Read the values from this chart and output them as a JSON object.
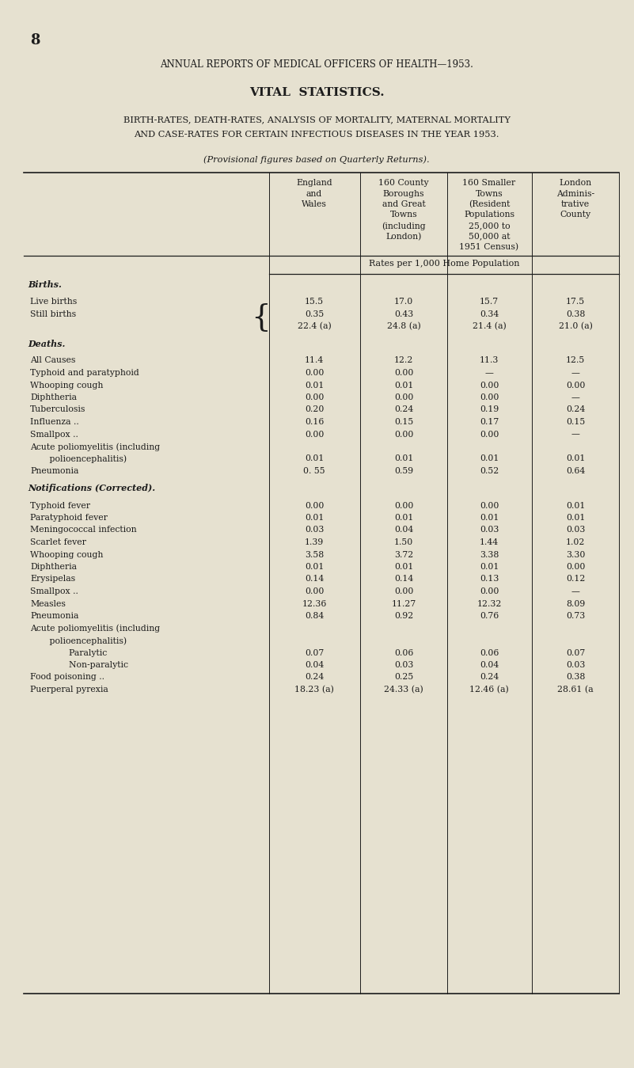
{
  "page_number": "8",
  "title1": "ANNUAL REPORTS OF MEDICAL OFFICERS OF HEALTH—1953.",
  "title2": "VITAL  STATISTICS.",
  "title3": "BIRTH-RATES, DEATH-RATES, ANALYSIS OF MORTALITY, MATERNAL MORTALITY",
  "title4": "AND CASE-RATES FOR CERTAIN INFECTIOUS DISEASES IN THE YEAR 1953.",
  "subtitle": "(Provisional figures based on Quarterly Returns).",
  "col_headers": [
    [
      "England",
      "and",
      "Wales"
    ],
    [
      "160 County",
      "Boroughs",
      "and Great",
      "Towns",
      "(including",
      "London)"
    ],
    [
      "160 Smaller",
      "Towns",
      "(Resident",
      "Populations",
      "25,000 to",
      "50,000 at",
      "1951 Census)"
    ],
    [
      "London",
      "Adminis-",
      "trative",
      "County"
    ]
  ],
  "rates_header": "Rates per 1,000 Home Population",
  "section_births": "Births.",
  "section_deaths": "Deaths.",
  "section_notifications": "Notifications (Corrected).",
  "rows": [
    {
      "type": "data",
      "label": "Live births",
      "dots": "  ..    ..    ..",
      "vals": [
        "15.5",
        "17.0",
        "15.7",
        "17.5"
      ]
    },
    {
      "type": "data",
      "label": "Still births",
      "dots": "  ..    ..    ..",
      "brace": true,
      "vals": [
        "0.35",
        "0.43",
        "0.34",
        "0.38"
      ]
    },
    {
      "type": "data",
      "label": "",
      "dots": "",
      "brace_cont": true,
      "vals": [
        "22.4 (a)",
        "24.8 (a)",
        "21.4 (a)",
        "21.0 (a)"
      ]
    },
    {
      "type": "section",
      "label": "Deaths."
    },
    {
      "type": "data",
      "label": "All Causes",
      "dots": "  ..    ..    ..",
      "vals": [
        "11.4",
        "12.2",
        "11.3",
        "12.5"
      ]
    },
    {
      "type": "data",
      "label": "Typhoid and paratyphoid",
      "dots": "  ..",
      "vals": [
        "0.00",
        "0.00",
        "—",
        "—"
      ]
    },
    {
      "type": "data",
      "label": "Whooping cough",
      "dots": "    ..    ..",
      "vals": [
        "0.01",
        "0.01",
        "0.00",
        "0.00"
      ]
    },
    {
      "type": "data",
      "label": "Diphtheria",
      "dots": "  ..    ..    ..",
      "vals": [
        "0.00",
        "0.00",
        "0.00",
        "—"
      ]
    },
    {
      "type": "data",
      "label": "Tuberculosis",
      "dots": "  ..    ..    ..",
      "vals": [
        "0.20",
        "0.24",
        "0.19",
        "0.24"
      ]
    },
    {
      "type": "data",
      "label": "Influenza ..",
      "dots": "    ..    ..    ..",
      "vals": [
        "0.16",
        "0.15",
        "0.17",
        "0.15"
      ]
    },
    {
      "type": "data",
      "label": "Smallpox ..",
      "dots": "    ..    ..    ..",
      "vals": [
        "0.00",
        "0.00",
        "0.00",
        "—"
      ]
    },
    {
      "type": "data2",
      "label": "Acute poliomyelitis (including",
      "label2": "   polioencephalitis)",
      "dots": "  ..    ..",
      "vals": [
        "0.01",
        "0.01",
        "0.01",
        "0.01"
      ]
    },
    {
      "type": "data",
      "label": "Pneumonia",
      "dots": "    ..    ..    ..",
      "vals": [
        "0. 55",
        "0.59",
        "0.52",
        "0.64"
      ]
    },
    {
      "type": "section",
      "label": "Notifications (Corrected)."
    },
    {
      "type": "data",
      "label": "Typhoid fever",
      "dots": "  ..    ..    ..",
      "vals": [
        "0.00",
        "0.00",
        "0.00",
        "0.01"
      ]
    },
    {
      "type": "data",
      "label": "Paratyphoid fever",
      "dots": "    ..    ..",
      "vals": [
        "0.01",
        "0.01",
        "0.01",
        "0.01"
      ]
    },
    {
      "type": "data",
      "label": "Meningococcal infection",
      "dots": "  ..",
      "vals": [
        "0.03",
        "0.04",
        "0.03",
        "0.03"
      ]
    },
    {
      "type": "data",
      "label": "Scarlet fever",
      "dots": "  ..    ..    ..",
      "vals": [
        "1.39",
        "1.50",
        "1.44",
        "1.02"
      ]
    },
    {
      "type": "data",
      "label": "Whooping cough",
      "dots": "    ..    ..",
      "vals": [
        "3.58",
        "3.72",
        "3.38",
        "3.30"
      ]
    },
    {
      "type": "data",
      "label": "Diphtheria",
      "dots": "  ..    ..    ..",
      "vals": [
        "0.01",
        "0.01",
        "0.01",
        "0.00"
      ]
    },
    {
      "type": "data",
      "label": "Erysipelas",
      "dots": "  ..    ..    ..",
      "vals": [
        "0.14",
        "0.14",
        "0.13",
        "0.12"
      ]
    },
    {
      "type": "data",
      "label": "Smallpox ..",
      "dots": "    ..    ..    ..",
      "vals": [
        "0.00",
        "0.00",
        "0.00",
        "—"
      ]
    },
    {
      "type": "data",
      "label": "Measles",
      "dots": "  ..    ..    ..",
      "vals": [
        "12.36",
        "11.27",
        "12.32",
        "8.09"
      ]
    },
    {
      "type": "data",
      "label": "Pneumonia",
      "dots": "  ..    ..    ..",
      "vals": [
        "0.84",
        "0.92",
        "0.76",
        "0.73"
      ]
    },
    {
      "type": "data3",
      "label": "Acute poliomyelitis (including",
      "label2": "   polioencephalitis)",
      "label3a": "      Paralytic",
      "label3b": "      Non-paralytic",
      "dots3a": "  ..    ..    ..",
      "dots3b": "  ..    ..    ..",
      "vals3a": [
        "0.07",
        "0.06",
        "0.06",
        "0.07"
      ],
      "vals3b": [
        "0.04",
        "0.03",
        "0.04",
        "0.03"
      ]
    },
    {
      "type": "data",
      "label": "Food poisoning ..",
      "dots": "    ..    ..",
      "vals": [
        "0.24",
        "0.25",
        "0.24",
        "0.38"
      ]
    },
    {
      "type": "data",
      "label": "Puerperal pyrexia",
      "dots": "    ..    ..",
      "vals": [
        "18.23 (a)",
        "24.33 (a)",
        "12.46 (a)",
        "28.61 (a"
      ]
    }
  ],
  "bg": "#e6e1d0",
  "tc": "#1c1c1c",
  "lc": "#1c1c1c"
}
